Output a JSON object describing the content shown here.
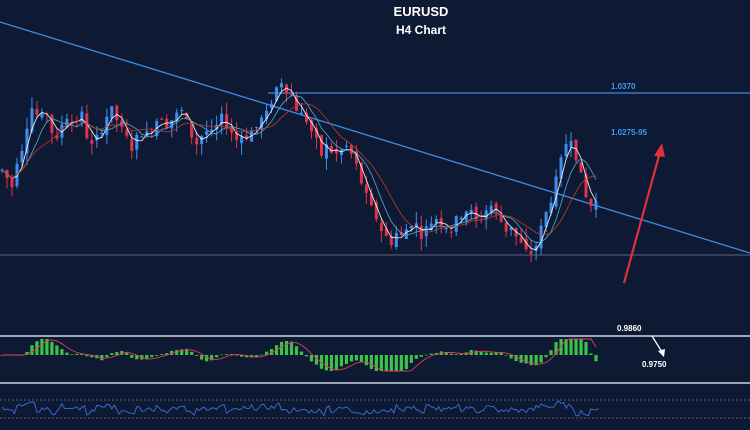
{
  "title": "EURUSD",
  "subtitle": "H4 Chart",
  "colors": {
    "background": "#0e1a33",
    "bull": "#3d8ef0",
    "bear": "#e0334b",
    "ma_fast": "#ffffff",
    "ma_mid": "#4fb0c6",
    "ma_slow": "#c0392b",
    "trendline": "#3a8ee6",
    "resistance": "#3a8ee6",
    "support": "#dfe3ea",
    "hist_pos": "#3cc24a",
    "hist_neg": "#3cc24a",
    "signal": "#e04050",
    "rsi": "#3a6fe0",
    "arrow_up": "#e0303e",
    "arrow_down": "#ffffff",
    "label_blue": "#3a9bf2",
    "label_white": "#ffffff"
  },
  "levels": {
    "resistance_label": "1.0370",
    "target_label": "1.0275-95",
    "support_label": "0.9860",
    "down_target_label": "0.9750"
  },
  "chart_data": {
    "type": "candlestick",
    "title": "EURUSD",
    "subtitle": "H4 Chart",
    "price_range": [
      0.97,
      1.044
    ],
    "levels": [
      {
        "label": "1.0370",
        "value": 1.037
      },
      {
        "label": "1.0275-95",
        "value": 1.0285
      },
      {
        "label": "0.9860",
        "value": 0.986
      },
      {
        "label": "0.9750",
        "value": 0.975
      }
    ],
    "price_path": [
      1.012,
      1.01,
      1.008,
      1.015,
      1.018,
      1.024,
      1.028,
      1.026,
      1.025,
      1.027,
      1.022,
      1.019,
      1.024,
      1.026,
      1.024,
      1.025,
      1.026,
      1.021,
      1.018,
      1.02,
      1.023,
      1.026,
      1.027,
      1.025,
      1.022,
      1.02,
      1.018,
      1.02,
      1.022,
      1.021,
      1.023,
      1.025,
      1.026,
      1.024,
      1.025,
      1.026,
      1.027,
      1.024,
      1.021,
      1.019,
      1.021,
      1.022,
      1.021,
      1.023,
      1.025,
      1.024,
      1.022,
      1.02,
      1.021,
      1.021,
      1.022,
      1.023,
      1.025,
      1.026,
      1.03,
      1.033,
      1.035,
      1.033,
      1.031,
      1.028,
      1.026,
      1.025,
      1.022,
      1.019,
      1.016,
      1.018,
      1.017,
      1.016,
      1.017,
      1.018,
      1.016,
      1.013,
      1.009,
      1.005,
      1.002,
      1.0,
      0.997,
      0.995,
      0.994,
      0.996,
      0.995,
      0.997,
      0.999,
      0.998,
      0.996,
      0.997,
      0.999,
      1.0,
      0.999,
      0.998,
      0.997,
      0.999,
      1.001,
      1.002,
      1.001,
      0.999,
      1.0,
      1.002,
      1.003,
      1.001,
      0.999,
      0.997,
      0.998,
      0.995,
      0.993,
      0.991,
      0.991,
      0.993,
      0.997,
      1.001,
      1.005,
      1.009,
      1.014,
      1.019,
      1.021,
      1.016,
      1.01,
      1.005,
      1.003,
      1.004
    ],
    "indicators": [
      "moving averages (3)",
      "histogram oscillator with signal line",
      "oscillator line"
    ]
  }
}
